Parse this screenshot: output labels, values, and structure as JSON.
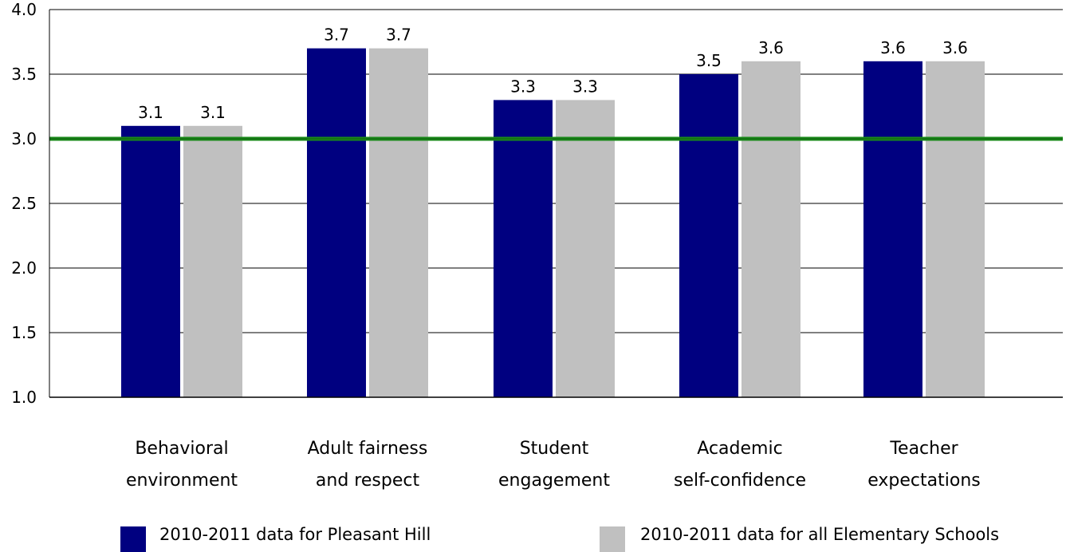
{
  "chart_data": {
    "type": "bar",
    "categories": [
      [
        "Behavioral",
        "environment"
      ],
      [
        "Adult fairness",
        "and respect"
      ],
      [
        "Student",
        "engagement"
      ],
      [
        "Academic",
        "self-confidence"
      ],
      [
        "Teacher",
        "expectations"
      ]
    ],
    "series": [
      {
        "name": "2010-2011 data for Pleasant Hill",
        "color": "#000080",
        "values": [
          3.1,
          3.7,
          3.3,
          3.5,
          3.6
        ],
        "labels": [
          "3.1",
          "3.7",
          "3.3",
          "3.5",
          "3.6"
        ]
      },
      {
        "name": "2010-2011 data for all Elementary Schools",
        "color": "#c0c0c0",
        "values": [
          3.1,
          3.7,
          3.3,
          3.6,
          3.6
        ],
        "labels": [
          "3.1",
          "3.7",
          "3.3",
          "3.6",
          "3.6"
        ]
      }
    ],
    "ylim": [
      1.0,
      4.0
    ],
    "yticks": [
      "1.0",
      "1.5",
      "2.0",
      "2.5",
      "3.0",
      "3.5",
      "4.0"
    ],
    "reference_line": {
      "value": 3.0,
      "color": "#1a8a1a"
    },
    "grid": true,
    "legend": "bottom"
  }
}
